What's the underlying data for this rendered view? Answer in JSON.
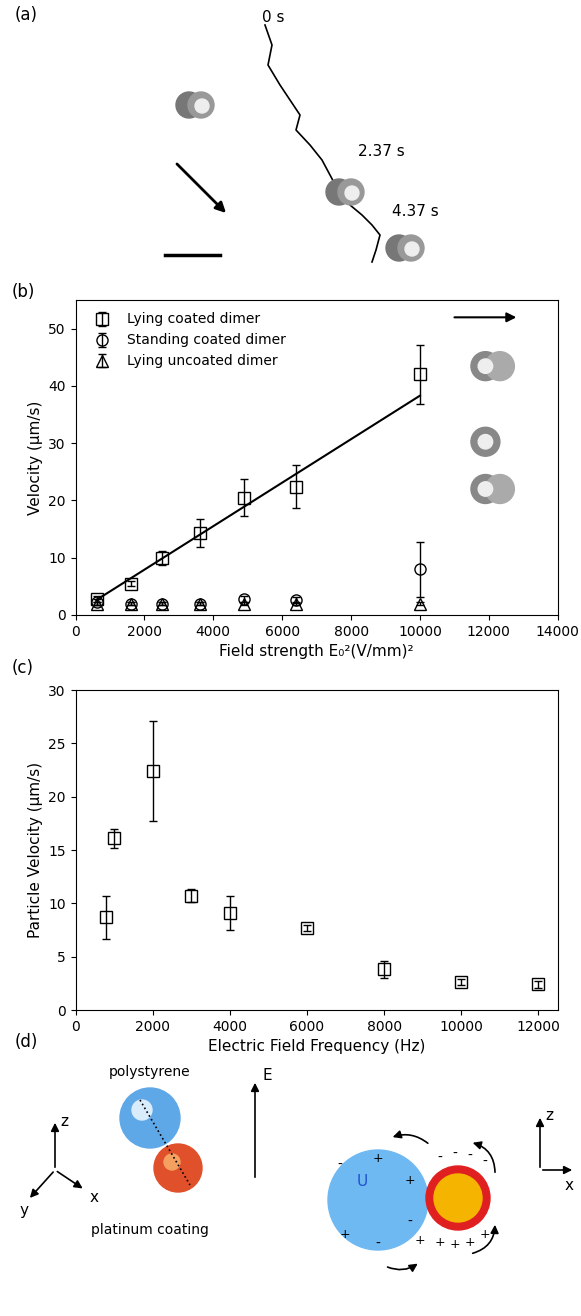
{
  "panel_a": {
    "label": "(a)",
    "times": [
      "0 s",
      "2.37 s",
      "4.37 s"
    ]
  },
  "chart_data": [
    {
      "type": "scatter",
      "panel_label": "(b)",
      "x_label": "Field strength E₀²(V/mm)²",
      "y_label": "Velocity (μm/s)",
      "x": [
        625,
        1600,
        2500,
        3600,
        4900,
        6400,
        10000
      ],
      "series": [
        {
          "name": "Lying coated dimer",
          "color": "black",
          "marker": "square",
          "values": [
            2.8,
            5.5,
            9.9,
            14.3,
            20.5,
            22.4,
            42.0
          ],
          "errors": [
            0.5,
            0.5,
            1.2,
            2.5,
            3.2,
            3.8,
            5.2
          ]
        },
        {
          "name": "Standing coated dimer",
          "color": "black",
          "marker": "circle",
          "values": [
            2.3,
            2.0,
            2.0,
            2.0,
            2.8,
            2.6,
            8.0
          ],
          "errors": [
            0.5,
            0.3,
            0.3,
            0.3,
            0.5,
            0.5,
            4.8
          ]
        },
        {
          "name": "Lying uncoated dimer",
          "color": "black",
          "marker": "triangle",
          "values": [
            2.0,
            2.0,
            2.0,
            2.0,
            2.0,
            2.0,
            2.0
          ],
          "errors": [
            0.3,
            0.2,
            0.2,
            0.2,
            0.2,
            0.2,
            0.3
          ]
        }
      ],
      "fit": {
        "type": "line",
        "color": "black",
        "x": [
          600,
          10000
        ],
        "values": [
          2.6,
          38.3
        ]
      },
      "xlim": [
        0,
        14000
      ],
      "xticks": [
        0,
        2000,
        4000,
        6000,
        8000,
        10000,
        12000,
        14000
      ],
      "ylim": [
        0,
        55
      ],
      "yticks": [
        0,
        10,
        20,
        30,
        40,
        50
      ],
      "legend": "upper left"
    },
    {
      "type": "scatter",
      "panel_label": "(c)",
      "x_label": "Electric Field Frequency (Hz)",
      "y_label": "Particle Velocity (μm/s)",
      "x": [
        800,
        1000,
        2000,
        3000,
        4000,
        6000,
        8000,
        10000,
        12000
      ],
      "series": [
        {
          "name": "Particle Velocity",
          "color": "black",
          "marker": "square",
          "values": [
            8.7,
            16.1,
            22.4,
            10.7,
            9.1,
            7.7,
            3.8,
            2.6,
            2.4
          ],
          "errors": [
            2.0,
            0.9,
            4.7,
            0.6,
            1.6,
            0.3,
            0.8,
            0.3,
            0.3
          ]
        }
      ],
      "xlim": [
        0,
        12500
      ],
      "xticks": [
        0,
        2000,
        4000,
        6000,
        8000,
        10000,
        12000
      ],
      "ylim": [
        0,
        30
      ],
      "yticks": [
        0,
        5,
        10,
        15,
        20,
        25,
        30
      ]
    }
  ],
  "panel_d": {
    "label": "(d)",
    "sphere": "polystyrene",
    "coating": "platinum coating",
    "axes_left": [
      "x",
      "y",
      "z"
    ],
    "field": "E",
    "velocity": "U",
    "axes_right": [
      "x",
      "z"
    ],
    "plus": "+",
    "minus": "-"
  }
}
